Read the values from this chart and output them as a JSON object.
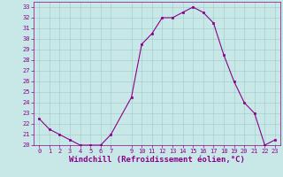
{
  "x": [
    0,
    1,
    2,
    3,
    4,
    5,
    6,
    7,
    9,
    10,
    11,
    12,
    13,
    14,
    15,
    16,
    17,
    18,
    19,
    20,
    21,
    22,
    23
  ],
  "y": [
    22.5,
    21.5,
    21.0,
    20.5,
    20.0,
    20.0,
    20.0,
    21.0,
    24.5,
    29.5,
    30.5,
    32.0,
    32.0,
    32.5,
    33.0,
    32.5,
    31.5,
    28.5,
    26.0,
    24.0,
    23.0,
    20.0,
    20.5
  ],
  "line_color": "#8B008B",
  "marker_color": "#8B008B",
  "bg_color": "#c8e8e8",
  "grid_color": "#a0c8c8",
  "xlabel": "Windchill (Refroidissement éolien,°C)",
  "xlim": [
    -0.5,
    23.5
  ],
  "ylim": [
    20,
    33.5
  ],
  "yticks": [
    20,
    21,
    22,
    23,
    24,
    25,
    26,
    27,
    28,
    29,
    30,
    31,
    32,
    33
  ],
  "xticks": [
    0,
    1,
    2,
    3,
    4,
    5,
    6,
    7,
    9,
    10,
    11,
    12,
    13,
    14,
    15,
    16,
    17,
    18,
    19,
    20,
    21,
    22,
    23
  ],
  "tick_fontsize": 5.0,
  "label_fontsize": 6.5,
  "line_width": 0.8,
  "marker_size": 2.0
}
